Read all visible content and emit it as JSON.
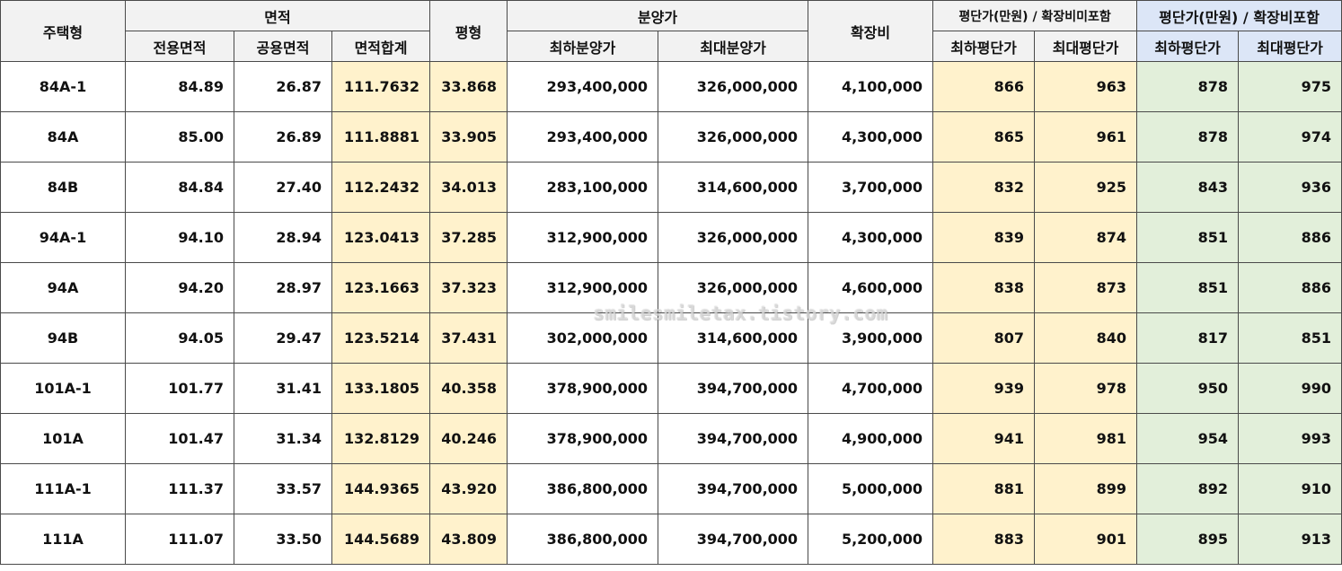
{
  "header": {
    "housing_type": "주택형",
    "area_group": "면적",
    "area_exclusive": "전용면적",
    "area_common": "공용면적",
    "area_total": "면적합계",
    "pyeong_type": "평형",
    "sale_price_group": "분양가",
    "sale_price_min": "최하분양가",
    "sale_price_max": "최대분양가",
    "expansion_cost": "확장비",
    "ppp_excl_group": "평단가(만원) / 확장비미포함",
    "ppp_excl_min": "최하평단가",
    "ppp_excl_max": "최대평단가",
    "ppp_incl_group": "평단가(만원) / 확장비포함",
    "ppp_incl_min": "최하평단가",
    "ppp_incl_max": "최대평단가"
  },
  "rows": [
    [
      "84A-1",
      "84.89",
      "26.87",
      "111.7632",
      "33.868",
      "293,400,000",
      "326,000,000",
      "4,100,000",
      "866",
      "963",
      "878",
      "975"
    ],
    [
      "84A",
      "85.00",
      "26.89",
      "111.8881",
      "33.905",
      "293,400,000",
      "326,000,000",
      "4,300,000",
      "865",
      "961",
      "878",
      "974"
    ],
    [
      "84B",
      "84.84",
      "27.40",
      "112.2432",
      "34.013",
      "283,100,000",
      "314,600,000",
      "3,700,000",
      "832",
      "925",
      "843",
      "936"
    ],
    [
      "94A-1",
      "94.10",
      "28.94",
      "123.0413",
      "37.285",
      "312,900,000",
      "326,000,000",
      "4,300,000",
      "839",
      "874",
      "851",
      "886"
    ],
    [
      "94A",
      "94.20",
      "28.97",
      "123.1663",
      "37.323",
      "312,900,000",
      "326,000,000",
      "4,600,000",
      "838",
      "873",
      "851",
      "886"
    ],
    [
      "94B",
      "94.05",
      "29.47",
      "123.5214",
      "37.431",
      "302,000,000",
      "314,600,000",
      "3,900,000",
      "807",
      "840",
      "817",
      "851"
    ],
    [
      "101A-1",
      "101.77",
      "31.41",
      "133.1805",
      "40.358",
      "378,900,000",
      "394,700,000",
      "4,700,000",
      "939",
      "978",
      "950",
      "990"
    ],
    [
      "101A",
      "101.47",
      "31.34",
      "132.8129",
      "40.246",
      "378,900,000",
      "394,700,000",
      "4,900,000",
      "941",
      "981",
      "954",
      "993"
    ],
    [
      "111A-1",
      "111.37",
      "33.57",
      "144.9365",
      "43.920",
      "386,800,000",
      "394,700,000",
      "5,000,000",
      "881",
      "899",
      "892",
      "910"
    ],
    [
      "111A",
      "111.07",
      "33.50",
      "144.5689",
      "43.809",
      "386,800,000",
      "394,700,000",
      "5,200,000",
      "883",
      "901",
      "895",
      "913"
    ]
  ],
  "watermark": "smilesmiletax.tistory.com",
  "colors": {
    "header_bg": "#f2f2f2",
    "header_blue_bg": "#dce6f7",
    "highlight_yellow": "#fff2cc",
    "highlight_green": "#e2efda",
    "border": "#4a4a4a"
  }
}
